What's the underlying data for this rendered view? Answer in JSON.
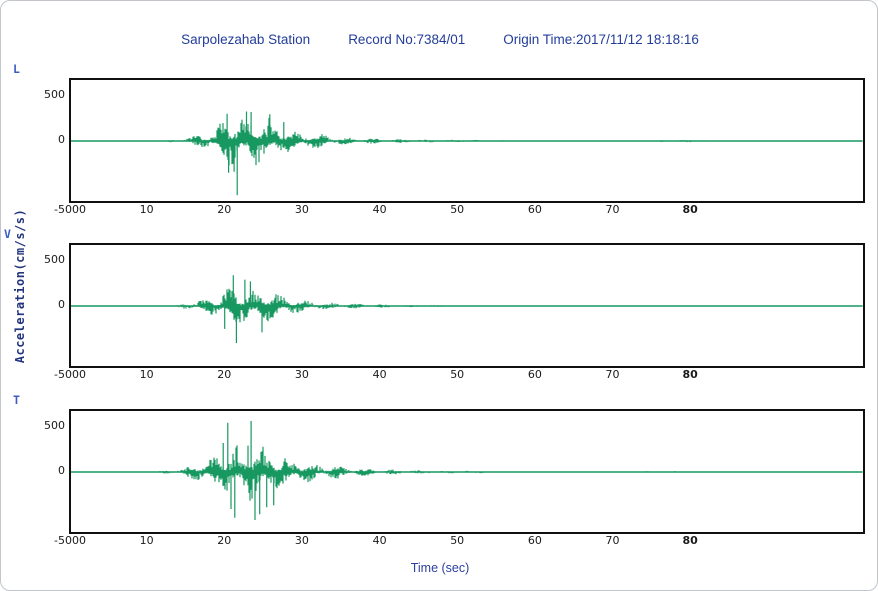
{
  "header": {
    "station": "Sarpolezahab Station",
    "record": "Record No:7384/01",
    "origin_time": "Origin Time:2017/11/12 18:18:16"
  },
  "axes": {
    "xlabel": "Time (sec)",
    "ylabel": "Acceleration(cm/s/s)",
    "yticks": [
      "500",
      "0",
      "-500"
    ],
    "xticks": [
      "10",
      "20",
      "30",
      "40",
      "50",
      "60",
      "70",
      "80"
    ],
    "corner_label": "-5000"
  },
  "colors": {
    "trace": "#179860",
    "title_text": "#233d9b",
    "channel_label": "#3c5cc5",
    "axis_text": "#1a1a1a",
    "ylabel_text": "#23357e",
    "box_border": "#101010"
  },
  "chart_data": {
    "type": "line",
    "subtype": "three-component-accelerogram",
    "title": "Sarpolezahab Station  Record No:7384/01  Origin Time:2017/11/12 18:18:16",
    "xlabel": "Time (sec)",
    "ylabel": "Acceleration(cm/s/s)",
    "xlim": [
      0,
      102
    ],
    "ylim": [
      -680,
      695
    ],
    "xtick_values": [
      10,
      20,
      30,
      40,
      50,
      60,
      70,
      80
    ],
    "ytick_values": [
      -500,
      0,
      500
    ],
    "grid": false,
    "legend": "none",
    "channels": [
      {
        "label": "L",
        "peak_cm_s2": -620,
        "strong_motion_window_sec": [
          14,
          35
        ],
        "envelope": [
          [
            0,
            7
          ],
          [
            12,
            8
          ],
          [
            14,
            25
          ],
          [
            15,
            45
          ],
          [
            16,
            70
          ],
          [
            17,
            90
          ],
          [
            18,
            110
          ],
          [
            19,
            160
          ],
          [
            19.5,
            260
          ],
          [
            20,
            300
          ],
          [
            20.5,
            330
          ],
          [
            21,
            340
          ],
          [
            21.5,
            300
          ],
          [
            22,
            320
          ],
          [
            22.5,
            340
          ],
          [
            23,
            300
          ],
          [
            23.5,
            320
          ],
          [
            24,
            280
          ],
          [
            25,
            260
          ],
          [
            25.5,
            280
          ],
          [
            26,
            230
          ],
          [
            27,
            200
          ],
          [
            27.5,
            210
          ],
          [
            28,
            150
          ],
          [
            29,
            120
          ],
          [
            30,
            110
          ],
          [
            31,
            90
          ],
          [
            32,
            100
          ],
          [
            33,
            70
          ],
          [
            34,
            55
          ],
          [
            35,
            45
          ],
          [
            37,
            35
          ],
          [
            40,
            28
          ],
          [
            45,
            18
          ],
          [
            50,
            14
          ],
          [
            55,
            11
          ],
          [
            60,
            10
          ],
          [
            65,
            9
          ],
          [
            70,
            9
          ],
          [
            74,
            10
          ],
          [
            78,
            15
          ],
          [
            81,
            13
          ],
          [
            84,
            9
          ],
          [
            90,
            8
          ],
          [
            102,
            7
          ]
        ],
        "spikes": [
          [
            21.4,
            -615
          ],
          [
            20.3,
            -360
          ],
          [
            21.0,
            -350
          ],
          [
            20.1,
            310
          ],
          [
            22.6,
            335
          ],
          [
            23.2,
            330
          ],
          [
            25.6,
            305
          ],
          [
            27.4,
            215
          ]
        ]
      },
      {
        "label": "V",
        "peak_cm_s2": -420,
        "strong_motion_window_sec": [
          14,
          33
        ],
        "envelope": [
          [
            0,
            5
          ],
          [
            13,
            6
          ],
          [
            14,
            20
          ],
          [
            15,
            40
          ],
          [
            16,
            60
          ],
          [
            17,
            80
          ],
          [
            18,
            100
          ],
          [
            19,
            130
          ],
          [
            19.5,
            170
          ],
          [
            20,
            200
          ],
          [
            20.5,
            230
          ],
          [
            21,
            250
          ],
          [
            21.5,
            230
          ],
          [
            22,
            220
          ],
          [
            22.5,
            240
          ],
          [
            23,
            210
          ],
          [
            24,
            200
          ],
          [
            24.5,
            220
          ],
          [
            25,
            190
          ],
          [
            26,
            170
          ],
          [
            26.5,
            180
          ],
          [
            27,
            140
          ],
          [
            28,
            110
          ],
          [
            29,
            90
          ],
          [
            30,
            80
          ],
          [
            31,
            65
          ],
          [
            32,
            55
          ],
          [
            33,
            45
          ],
          [
            34,
            38
          ],
          [
            35,
            32
          ],
          [
            38,
            24
          ],
          [
            41,
            18
          ],
          [
            45,
            13
          ],
          [
            50,
            10
          ],
          [
            55,
            8
          ],
          [
            60,
            7
          ],
          [
            70,
            6
          ],
          [
            80,
            7
          ],
          [
            83,
            9
          ],
          [
            86,
            6
          ],
          [
            102,
            5
          ]
        ],
        "spikes": [
          [
            20.9,
            350
          ],
          [
            21.3,
            -420
          ],
          [
            19.8,
            -260
          ],
          [
            22.4,
            300
          ],
          [
            24.6,
            -300
          ],
          [
            23.1,
            280
          ]
        ]
      },
      {
        "label": "T",
        "peak_cm_s2": 580,
        "strong_motion_window_sec": [
          13,
          38
        ],
        "envelope": [
          [
            0,
            7
          ],
          [
            11,
            8
          ],
          [
            12,
            18
          ],
          [
            13,
            25
          ],
          [
            14,
            35
          ],
          [
            15,
            70
          ],
          [
            16,
            110
          ],
          [
            17,
            140
          ],
          [
            18,
            170
          ],
          [
            18.5,
            200
          ],
          [
            19,
            230
          ],
          [
            19.5,
            260
          ],
          [
            20,
            300
          ],
          [
            20.5,
            280
          ],
          [
            21,
            320
          ],
          [
            21.5,
            300
          ],
          [
            22,
            280
          ],
          [
            22.5,
            300
          ],
          [
            23,
            330
          ],
          [
            23.5,
            340
          ],
          [
            24,
            300
          ],
          [
            24.5,
            320
          ],
          [
            25,
            280
          ],
          [
            26,
            250
          ],
          [
            27,
            230
          ],
          [
            28,
            180
          ],
          [
            29,
            150
          ],
          [
            30,
            130
          ],
          [
            31,
            110
          ],
          [
            32,
            100
          ],
          [
            33,
            90
          ],
          [
            34,
            80
          ],
          [
            35,
            70
          ],
          [
            36,
            60
          ],
          [
            38,
            45
          ],
          [
            40,
            35
          ],
          [
            43,
            25
          ],
          [
            46,
            20
          ],
          [
            50,
            15
          ],
          [
            55,
            12
          ],
          [
            60,
            10
          ],
          [
            65,
            9
          ],
          [
            70,
            10
          ],
          [
            73,
            13
          ],
          [
            76,
            12
          ],
          [
            80,
            10
          ],
          [
            85,
            8
          ],
          [
            102,
            7
          ]
        ],
        "spikes": [
          [
            20.2,
            560
          ],
          [
            20.6,
            -420
          ],
          [
            21.1,
            -520
          ],
          [
            23.2,
            580
          ],
          [
            23.7,
            -545
          ],
          [
            24.3,
            -480
          ],
          [
            22.8,
            300
          ],
          [
            25.2,
            -400
          ],
          [
            19.6,
            330
          ],
          [
            26.1,
            -380
          ]
        ]
      }
    ]
  }
}
